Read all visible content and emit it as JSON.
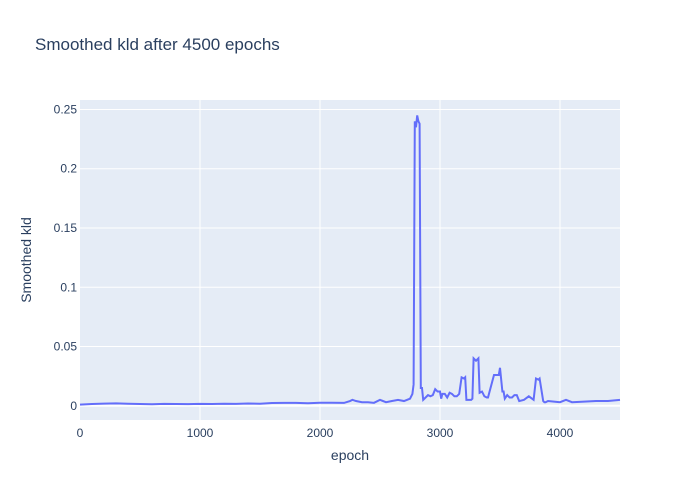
{
  "chart_data": {
    "type": "line",
    "title": "Smoothed kld after 4500 epochs",
    "xlabel": "epoch",
    "ylabel": "Smoothed kld",
    "xlim": [
      0,
      4500
    ],
    "ylim": [
      -0.012,
      0.258
    ],
    "grid": true,
    "legend": "none",
    "x_ticks": [
      0,
      1000,
      2000,
      3000,
      4000
    ],
    "y_ticks": [
      0,
      0.05,
      0.1,
      0.15,
      0.2,
      0.25
    ],
    "y_tick_labels": [
      "0",
      "0.05",
      "0.1",
      "0.15",
      "0.2",
      "0.25"
    ],
    "colors": {
      "plot_bg": "#e5ecf6",
      "grid": "#ffffff",
      "line": "#636efa",
      "text": "#2a3f5f"
    },
    "series": [
      {
        "x": [
          0,
          100,
          200,
          300,
          400,
          500,
          600,
          700,
          800,
          900,
          1000,
          1100,
          1200,
          1300,
          1400,
          1500,
          1600,
          1700,
          1800,
          1900,
          2000,
          2100,
          2200,
          2250,
          2270,
          2300,
          2350,
          2400,
          2450,
          2500,
          2550,
          2600,
          2650,
          2700,
          2750,
          2770,
          2780,
          2790,
          2800,
          2810,
          2820,
          2830,
          2840,
          2850,
          2860,
          2880,
          2900,
          2920,
          2940,
          2960,
          2980,
          3000,
          3010,
          3020,
          3040,
          3060,
          3080,
          3100,
          3120,
          3140,
          3160,
          3180,
          3200,
          3210,
          3220,
          3260,
          3270,
          3280,
          3300,
          3320,
          3330,
          3350,
          3370,
          3390,
          3400,
          3450,
          3490,
          3500,
          3520,
          3530,
          3540,
          3560,
          3580,
          3600,
          3620,
          3640,
          3660,
          3700,
          3740,
          3780,
          3800,
          3820,
          3830,
          3860,
          3870,
          3880,
          3900,
          3950,
          4000,
          4050,
          4100,
          4200,
          4300,
          4400,
          4500
        ],
        "y": [
          0.001,
          0.0015,
          0.0018,
          0.002,
          0.0017,
          0.0015,
          0.0013,
          0.0016,
          0.0015,
          0.0014,
          0.0016,
          0.0015,
          0.0017,
          0.0016,
          0.0019,
          0.0017,
          0.0023,
          0.0024,
          0.0024,
          0.0021,
          0.0025,
          0.0025,
          0.0024,
          0.004,
          0.005,
          0.004,
          0.003,
          0.003,
          0.0025,
          0.005,
          0.003,
          0.004,
          0.005,
          0.004,
          0.006,
          0.01,
          0.018,
          0.24,
          0.235,
          0.245,
          0.24,
          0.238,
          0.015,
          0.015,
          0.005,
          0.007,
          0.009,
          0.008,
          0.009,
          0.014,
          0.012,
          0.012,
          0.006,
          0.01,
          0.01,
          0.007,
          0.011,
          0.01,
          0.008,
          0.008,
          0.01,
          0.024,
          0.023,
          0.024,
          0.005,
          0.005,
          0.006,
          0.04,
          0.038,
          0.04,
          0.011,
          0.012,
          0.008,
          0.007,
          0.007,
          0.026,
          0.026,
          0.032,
          0.012,
          0.012,
          0.006,
          0.009,
          0.007,
          0.007,
          0.009,
          0.009,
          0.004,
          0.005,
          0.008,
          0.005,
          0.023,
          0.022,
          0.023,
          0.004,
          0.003,
          0.003,
          0.004,
          0.0035,
          0.003,
          0.005,
          0.003,
          0.0035,
          0.004,
          0.004,
          0.005
        ]
      }
    ]
  }
}
